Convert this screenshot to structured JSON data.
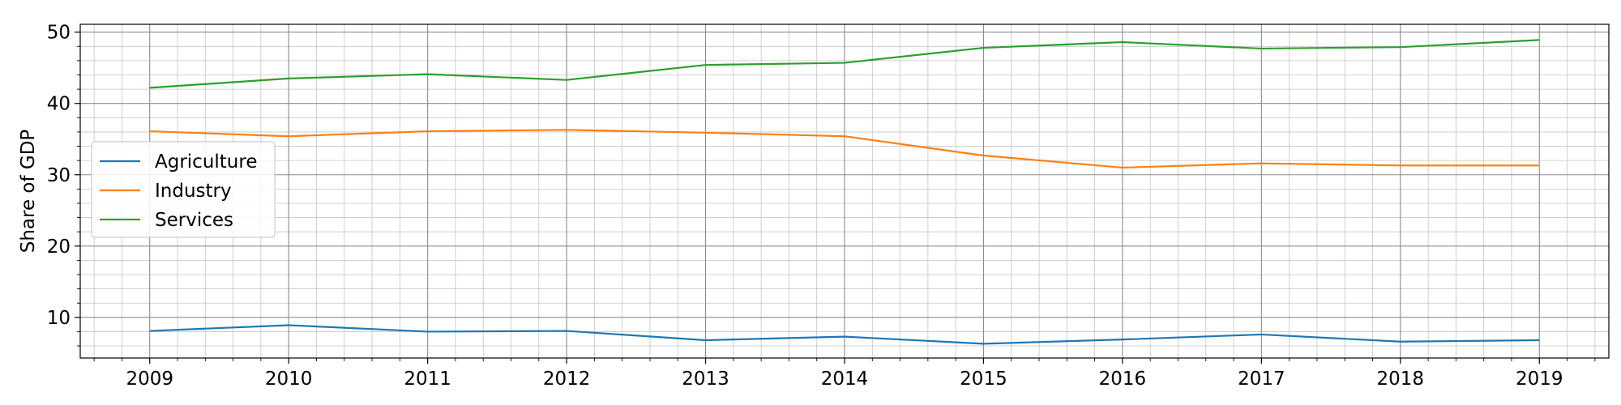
{
  "chart_data": {
    "type": "line",
    "title": "",
    "xlabel": "",
    "ylabel": "Share of GDP",
    "x": [
      2009,
      2010,
      2011,
      2012,
      2013,
      2014,
      2015,
      2016,
      2017,
      2018,
      2019
    ],
    "xlim": [
      2008.5,
      2019.5
    ],
    "ylim": [
      4.3,
      51.1
    ],
    "yticks": [
      10,
      20,
      30,
      40,
      50
    ],
    "grid": "major and minor",
    "legend_position": "center-left",
    "series": [
      {
        "name": "Agriculture",
        "color": "#1f77b4",
        "values": [
          8.1,
          8.9,
          8.0,
          8.1,
          6.8,
          7.3,
          6.3,
          6.9,
          7.6,
          6.6,
          6.8
        ]
      },
      {
        "name": "Industry",
        "color": "#ff7f0e",
        "values": [
          36.1,
          35.4,
          36.1,
          36.3,
          35.9,
          35.4,
          32.7,
          31.0,
          31.6,
          31.3,
          31.3
        ]
      },
      {
        "name": "Services",
        "color": "#2ca02c",
        "values": [
          42.2,
          43.5,
          44.1,
          43.3,
          45.4,
          45.7,
          47.8,
          48.6,
          47.7,
          47.9,
          48.9
        ]
      }
    ]
  }
}
